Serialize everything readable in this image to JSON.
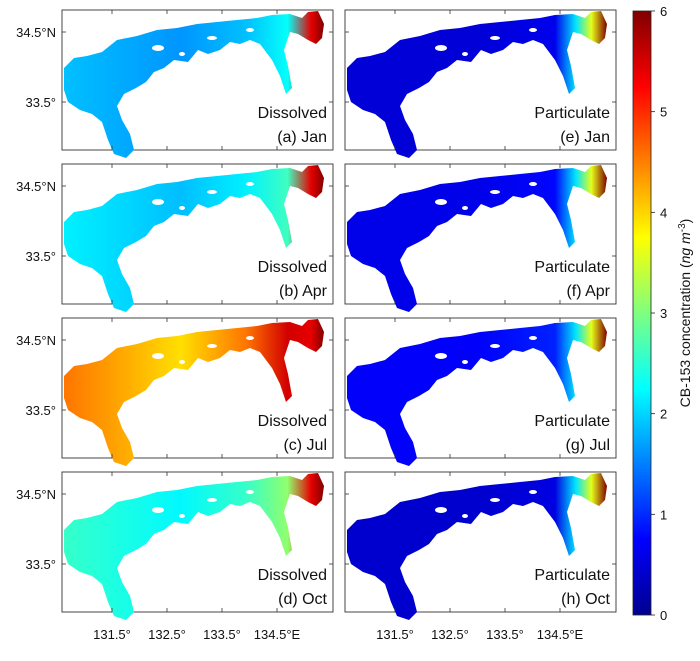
{
  "figure": {
    "rows": [
      {
        "left": {
          "phase": "Dissolved",
          "label": "(a) Jan",
          "level": 0.33
        },
        "right": {
          "phase": "Particulate",
          "label": "(e) Jan",
          "level": 0.08
        }
      },
      {
        "left": {
          "phase": "Dissolved",
          "label": "(b) Apr",
          "level": 0.38
        },
        "right": {
          "phase": "Particulate",
          "label": "(f) Apr",
          "level": 0.1
        }
      },
      {
        "left": {
          "phase": "Dissolved",
          "label": "(c) Jul",
          "level": 0.8
        },
        "right": {
          "phase": "Particulate",
          "label": "(g) Jul",
          "level": 0.12
        }
      },
      {
        "left": {
          "phase": "Dissolved",
          "label": "(d) Oct",
          "level": 0.45
        },
        "right": {
          "phase": "Particulate",
          "label": "(h) Oct",
          "level": 0.07
        }
      }
    ],
    "lat_ticks": [
      "34.5°N",
      "33.5°"
    ],
    "lon_ticks": [
      "131.5°",
      "132.5°",
      "133.5°",
      "134.5°E"
    ],
    "colorbar": {
      "label_main": "CB-153 concentration (",
      "label_unit": "ng m",
      "label_exp": "-3",
      "label_close": ")",
      "min": 0,
      "max": 6,
      "ticks": [
        "0",
        "1",
        "2",
        "3",
        "4",
        "5",
        "6"
      ],
      "colormap": [
        "#00008f",
        "#0000ff",
        "#00ffff",
        "#ffff00",
        "#ff0000",
        "#800000"
      ]
    }
  }
}
